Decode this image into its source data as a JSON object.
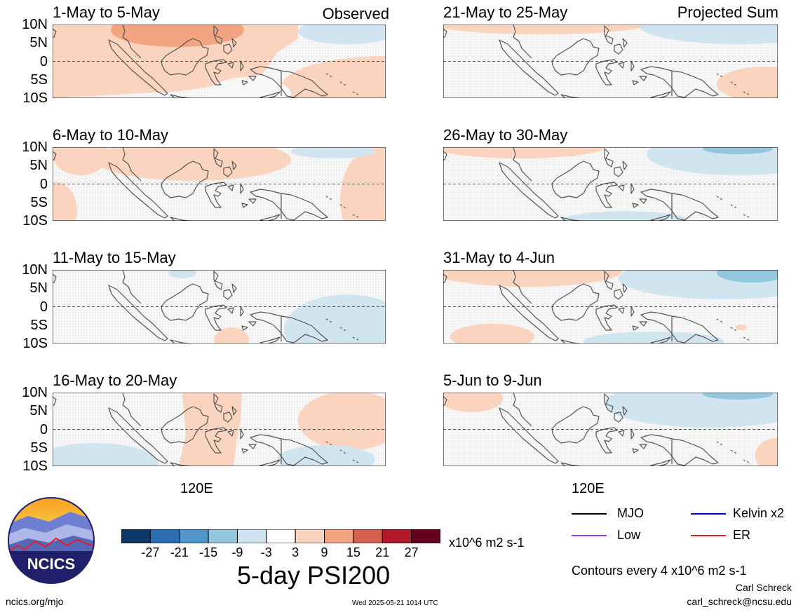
{
  "chart_data": {
    "type": "heatmap",
    "title": "5-day PSI200",
    "variable": "PSI200",
    "units": "x10^6 m2 s-1",
    "contour_note": "Contours every 4 x10^6 m2 s-1",
    "y_ticks": [
      "10N",
      "5N",
      "0",
      "5S",
      "10S"
    ],
    "x_tick": "120E",
    "columns": [
      {
        "label": "Observed",
        "panels": [
          "1-May to 5-May",
          "6-May to 10-May",
          "11-May to 15-May",
          "16-May to 20-May"
        ]
      },
      {
        "label": "Projected Sum",
        "panels": [
          "21-May to 25-May",
          "26-May to 30-May",
          "31-May to 4-Jun",
          "5-Jun to 9-Jun"
        ]
      }
    ],
    "colorbar": {
      "ticks": [
        "-27",
        "-21",
        "-15",
        "-9",
        "-3",
        "3",
        "9",
        "15",
        "21",
        "27"
      ],
      "colors": [
        "#0b3866",
        "#2a6db2",
        "#4f97cb",
        "#95c6df",
        "#d1e5f1",
        "#ffffff",
        "#fbd4bf",
        "#f3a481",
        "#d6604d",
        "#b2182b",
        "#67001f"
      ]
    },
    "legend": [
      {
        "name": "MJO",
        "color": "#000000"
      },
      {
        "name": "Kelvin x2",
        "color": "#0000cc"
      },
      {
        "name": "Low",
        "color": "#a040e0"
      },
      {
        "name": "ER",
        "color": "#e02020"
      }
    ]
  },
  "footer": {
    "logo_text": "NCICS",
    "site": "ncics.org/mjo",
    "timestamp": "Wed 2025-05-21 1014 UTC",
    "author": "Carl Schreck",
    "email": "carl_schreck@ncsu.edu"
  }
}
